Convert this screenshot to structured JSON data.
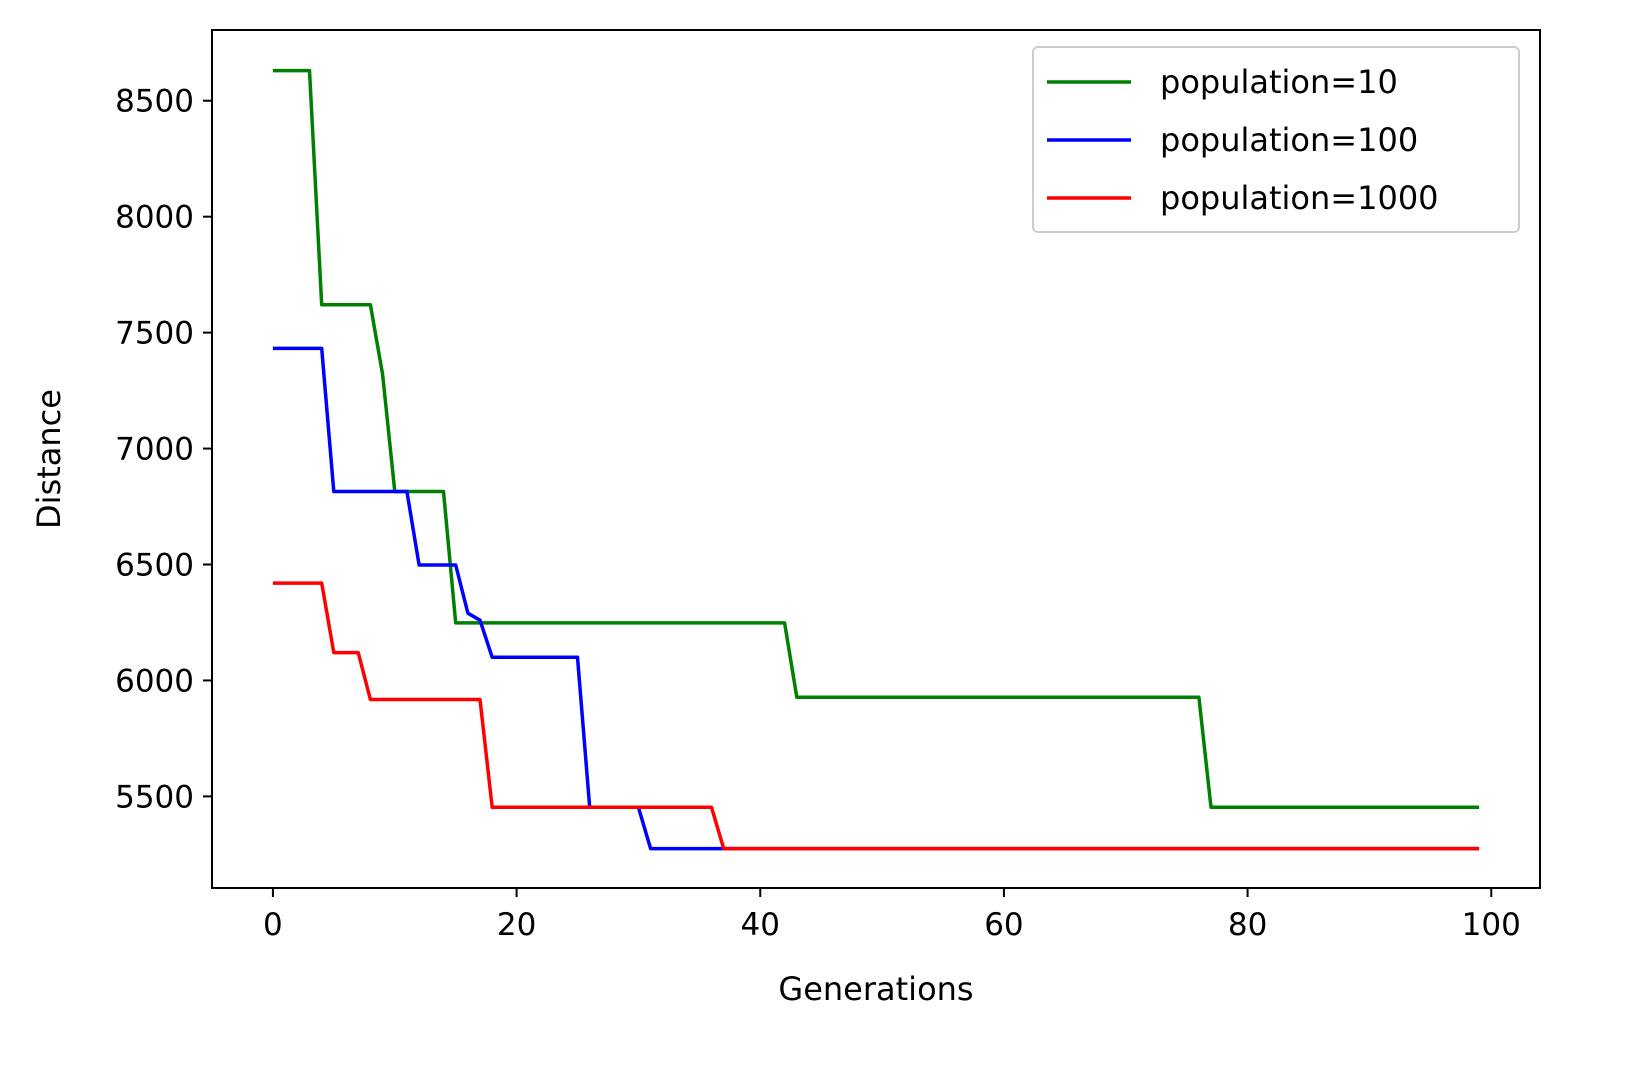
{
  "chart_data": {
    "type": "line",
    "title": "",
    "xlabel": "Generations",
    "ylabel": "Distance",
    "xlim": [
      -5,
      104
    ],
    "ylim": [
      5105,
      8805
    ],
    "xticks": [
      0,
      20,
      40,
      60,
      80,
      100
    ],
    "yticks": [
      5500,
      6000,
      6500,
      7000,
      7500,
      8000,
      8500
    ],
    "grid": false,
    "legend_position": "top-right",
    "series": [
      {
        "name": "population=10",
        "color": "#008000",
        "points": [
          [
            0,
            8630
          ],
          [
            3,
            8630
          ],
          [
            4,
            7620
          ],
          [
            8,
            7620
          ],
          [
            9,
            7320
          ],
          [
            10,
            6815
          ],
          [
            14,
            6815
          ],
          [
            15,
            6248
          ],
          [
            42,
            6248
          ],
          [
            43,
            5928
          ],
          [
            76,
            5928
          ],
          [
            77,
            5453
          ],
          [
            99,
            5453
          ]
        ]
      },
      {
        "name": "population=100",
        "color": "#0000ff",
        "points": [
          [
            0,
            7432
          ],
          [
            4,
            7432
          ],
          [
            5,
            6815
          ],
          [
            11,
            6815
          ],
          [
            12,
            6498
          ],
          [
            15,
            6498
          ],
          [
            16,
            6290
          ],
          [
            17,
            6260
          ],
          [
            18,
            6100
          ],
          [
            25,
            6100
          ],
          [
            26,
            5453
          ],
          [
            30,
            5453
          ],
          [
            31,
            5275
          ],
          [
            37,
            5275
          ],
          [
            99,
            5275
          ]
        ]
      },
      {
        "name": "population=1000",
        "color": "#ff0000",
        "points": [
          [
            0,
            6420
          ],
          [
            4,
            6420
          ],
          [
            5,
            6120
          ],
          [
            7,
            6120
          ],
          [
            8,
            5918
          ],
          [
            17,
            5918
          ],
          [
            18,
            5453
          ],
          [
            36,
            5453
          ],
          [
            37,
            5275
          ],
          [
            99,
            5275
          ]
        ]
      }
    ]
  }
}
